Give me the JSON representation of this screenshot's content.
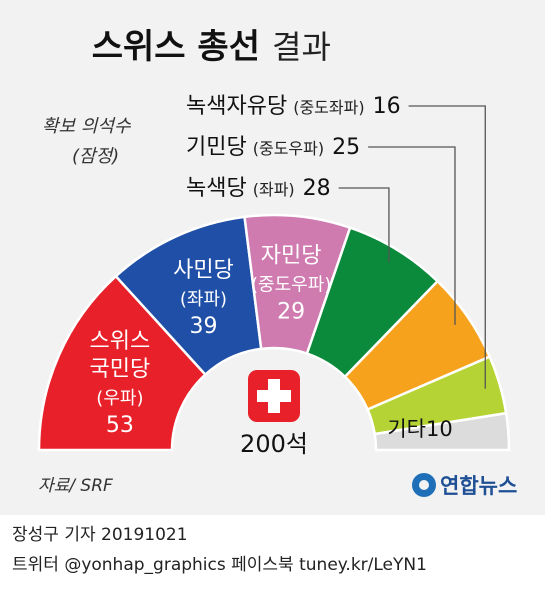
{
  "chart_data": {
    "type": "pie",
    "title": "스위스 총선",
    "title_suffix": "결과",
    "subtitle": [
      "확보 의석수",
      "(잠정)"
    ],
    "total": 200,
    "total_label": "200석",
    "series": [
      {
        "name": "스위스 국민당",
        "lines": [
          "스위스",
          "국민당",
          "(우파)"
        ],
        "value": 53,
        "color": "#e8202a"
      },
      {
        "name": "사민당",
        "lines": [
          "사민당",
          "(좌파)"
        ],
        "value": 39,
        "color": "#1f4fa6"
      },
      {
        "name": "자민당",
        "lines": [
          "자민당",
          "(중도우파)"
        ],
        "value": 29,
        "color": "#cf7bb0"
      },
      {
        "name": "녹색당",
        "label": "녹색당",
        "paren": "(좌파)",
        "value": 28,
        "color": "#0b8a3c"
      },
      {
        "name": "기민당",
        "label": "기민당",
        "paren": "(중도우파)",
        "value": 25,
        "color": "#f7a21d"
      },
      {
        "name": "녹색자유당",
        "label": "녹색자유당",
        "paren": "(중도좌파)",
        "value": 16,
        "color": "#b5d334"
      },
      {
        "name": "기타",
        "label": "기타",
        "value": 10,
        "color": "#dcdcdc"
      }
    ]
  },
  "source": "자료/ SRF",
  "logo_text": "연합뉴스",
  "credit": {
    "line1": "장성구 기자  20191021",
    "line2": "트위터 @yonhap_graphics  페이스북 tuney.kr/LeYN1"
  },
  "colors": {
    "swiss_flag": "#e8202a",
    "leader": "#555555"
  }
}
